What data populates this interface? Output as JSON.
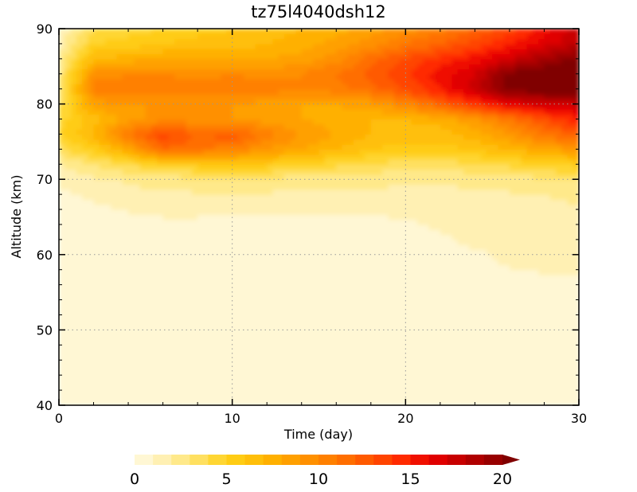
{
  "chart_data": {
    "type": "heatmap",
    "title": "tz75l4040dsh12",
    "xlabel": "Time  (day)",
    "ylabel": "Altitude  (km)",
    "xlim": [
      0,
      30
    ],
    "ylim": [
      40,
      90
    ],
    "xticks": [
      "0",
      "10",
      "20",
      "30"
    ],
    "yticks": [
      "40",
      "50",
      "60",
      "70",
      "80",
      "90"
    ],
    "grid": true,
    "colorbar": {
      "orientation": "horizontal",
      "placement": "bottom",
      "levels": [
        0,
        1,
        2,
        3,
        4,
        5,
        6,
        7,
        8,
        9,
        10,
        11,
        12,
        13,
        14,
        15,
        16,
        17,
        18,
        19,
        20
      ],
      "tick_labels": [
        "0",
        "5",
        "10",
        "15",
        "20"
      ],
      "tick_values": [
        0,
        5,
        10,
        15,
        20
      ],
      "extend": "max",
      "colors": [
        "#fff7d4",
        "#fff0b3",
        "#ffe98a",
        "#ffe060",
        "#ffd633",
        "#ffcc14",
        "#ffbf0a",
        "#ffb000",
        "#ffa000",
        "#ff9000",
        "#ff8000",
        "#ff6e00",
        "#ff5a00",
        "#ff4400",
        "#ff2a00",
        "#f01000",
        "#e00000",
        "#c80000",
        "#b00000",
        "#980000",
        "#800000"
      ]
    },
    "time_days": [
      0,
      2,
      4,
      6,
      8,
      10,
      12,
      14,
      16,
      18,
      20,
      22,
      24,
      26,
      28,
      30
    ],
    "altitude_km": [
      40,
      45,
      50,
      55,
      60,
      62,
      64,
      66,
      68,
      70,
      72,
      74,
      76,
      78,
      80,
      82,
      84,
      86,
      88,
      90
    ],
    "values": [
      [
        0.2,
        0.2,
        0.2,
        0.2,
        0.2,
        0.2,
        0.2,
        0.2,
        0.2,
        0.2,
        0.2,
        0.2,
        0.2,
        0.2,
        0.2,
        0.2
      ],
      [
        0.2,
        0.2,
        0.2,
        0.2,
        0.2,
        0.2,
        0.2,
        0.2,
        0.2,
        0.2,
        0.2,
        0.2,
        0.2,
        0.2,
        0.2,
        0.2
      ],
      [
        0.3,
        0.3,
        0.3,
        0.3,
        0.3,
        0.3,
        0.3,
        0.3,
        0.3,
        0.3,
        0.3,
        0.3,
        0.3,
        0.3,
        0.3,
        0.3
      ],
      [
        0.3,
        0.3,
        0.3,
        0.3,
        0.3,
        0.3,
        0.3,
        0.3,
        0.3,
        0.3,
        0.3,
        0.3,
        0.4,
        0.4,
        0.5,
        0.6
      ],
      [
        0.4,
        0.4,
        0.4,
        0.4,
        0.4,
        0.4,
        0.4,
        0.4,
        0.4,
        0.4,
        0.4,
        0.5,
        0.8,
        1.3,
        1.5,
        1.6
      ],
      [
        0.4,
        0.5,
        0.5,
        0.5,
        0.5,
        0.5,
        0.5,
        0.5,
        0.5,
        0.5,
        0.6,
        0.8,
        1.3,
        1.5,
        1.6,
        1.7
      ],
      [
        0.5,
        0.6,
        0.6,
        0.7,
        0.7,
        0.6,
        0.6,
        0.6,
        0.6,
        0.7,
        0.8,
        1.2,
        1.5,
        1.6,
        1.7,
        1.8
      ],
      [
        0.6,
        0.8,
        1.1,
        1.3,
        1.3,
        1.3,
        1.3,
        1.2,
        1.2,
        1.2,
        1.3,
        1.5,
        1.6,
        1.7,
        1.8,
        1.9
      ],
      [
        0.8,
        1.2,
        1.6,
        1.8,
        1.9,
        1.9,
        1.9,
        1.8,
        1.8,
        1.8,
        1.7,
        1.7,
        1.8,
        1.9,
        2.0,
        2.2
      ],
      [
        1.2,
        1.8,
        2.2,
        2.5,
        2.6,
        2.6,
        2.6,
        2.5,
        2.4,
        2.3,
        2.2,
        2.2,
        2.3,
        2.5,
        2.7,
        3.0
      ],
      [
        2.0,
        3.0,
        4.0,
        5.0,
        5.5,
        5.8,
        5.5,
        5.0,
        4.3,
        3.8,
        3.5,
        3.5,
        3.8,
        4.3,
        5.0,
        5.5
      ],
      [
        3.5,
        5.5,
        8.0,
        12.0,
        11.0,
        10.5,
        9.0,
        8.0,
        7.0,
        6.0,
        5.5,
        5.5,
        6.0,
        7.0,
        8.0,
        9.0
      ],
      [
        5.0,
        7.0,
        11.0,
        13.5,
        12.0,
        12.5,
        10.5,
        9.0,
        8.0,
        7.0,
        6.5,
        6.5,
        7.5,
        9.0,
        11.0,
        12.5
      ],
      [
        4.5,
        6.5,
        8.5,
        9.5,
        9.5,
        9.0,
        8.5,
        8.0,
        7.5,
        7.0,
        7.0,
        7.5,
        9.0,
        11.0,
        13.0,
        15.0
      ],
      [
        3.5,
        8.5,
        9.0,
        9.0,
        9.0,
        9.0,
        8.5,
        8.0,
        8.0,
        8.5,
        10.0,
        12.0,
        14.0,
        16.0,
        17.0,
        17.5
      ],
      [
        3.0,
        10.5,
        10.5,
        11.0,
        10.5,
        11.0,
        10.5,
        10.0,
        10.5,
        11.5,
        13.0,
        15.0,
        17.5,
        20.5,
        21.0,
        21.0
      ],
      [
        2.5,
        9.5,
        10.0,
        10.0,
        9.5,
        10.0,
        9.5,
        10.0,
        11.0,
        12.5,
        14.0,
        15.5,
        17.0,
        20.5,
        21.0,
        21.0
      ],
      [
        2.0,
        7.0,
        7.5,
        8.0,
        8.0,
        8.0,
        8.0,
        8.5,
        9.5,
        11.5,
        13.0,
        14.5,
        15.5,
        17.0,
        19.0,
        20.5
      ],
      [
        1.5,
        5.0,
        5.5,
        6.0,
        6.5,
        6.5,
        7.0,
        7.5,
        8.5,
        9.5,
        11.0,
        12.0,
        13.5,
        15.0,
        16.5,
        18.0
      ],
      [
        1.0,
        4.0,
        4.5,
        5.0,
        5.5,
        6.0,
        6.5,
        7.0,
        7.5,
        8.5,
        9.5,
        10.5,
        12.0,
        13.5,
        15.5,
        17.5
      ]
    ]
  }
}
